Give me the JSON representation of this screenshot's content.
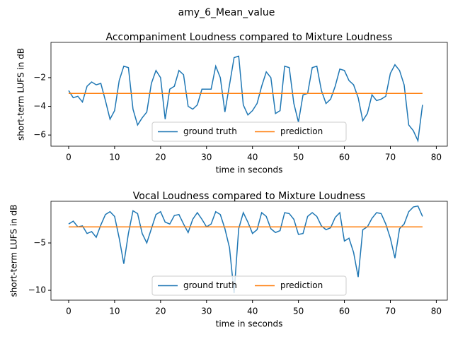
{
  "title": "amy_6_Mean_value",
  "chart_data": [
    {
      "type": "line",
      "title": "Accompaniment Loudness compared to Mixture Loudness",
      "xlabel": "time in seconds",
      "ylabel": "short-term LUFS in dB",
      "xlim": [
        -3.85,
        82.4
      ],
      "xticks": [
        0,
        10,
        20,
        30,
        40,
        50,
        60,
        70,
        80
      ],
      "ylim": [
        -6.78,
        0.46
      ],
      "yticks": [
        {
          "value": -6,
          "label": "−6"
        },
        {
          "value": -4,
          "label": "−4"
        },
        {
          "value": -2,
          "label": "−2"
        }
      ],
      "legend": "lower center",
      "legend_columns": 2,
      "series": [
        {
          "name": "ground truth",
          "color": "#1f77b4",
          "x": [
            0,
            1,
            2,
            3,
            4,
            5,
            6,
            7,
            8,
            9,
            10,
            11,
            12,
            13,
            14,
            15,
            16,
            17,
            18,
            19,
            20,
            21,
            22,
            23,
            24,
            25,
            26,
            27,
            28,
            29,
            30,
            31,
            32,
            33,
            34,
            35,
            36,
            37,
            38,
            39,
            40,
            41,
            42,
            43,
            44,
            45,
            46,
            47,
            48,
            49,
            50,
            51,
            52,
            53,
            54,
            55,
            56,
            57,
            58,
            59,
            60,
            61,
            62,
            63,
            64,
            65,
            66,
            67,
            68,
            69,
            70,
            71,
            72,
            73,
            74,
            75,
            76,
            77
          ],
          "values": [
            -2.9,
            -3.4,
            -3.3,
            -3.7,
            -2.6,
            -2.3,
            -2.5,
            -2.4,
            -3.6,
            -4.9,
            -4.3,
            -2.2,
            -1.2,
            -1.3,
            -4.2,
            -5.3,
            -4.8,
            -4.4,
            -2.4,
            -1.5,
            -2.0,
            -4.9,
            -2.8,
            -2.6,
            -1.5,
            -1.8,
            -4.0,
            -4.2,
            -3.9,
            -2.8,
            -2.8,
            -2.8,
            -1.2,
            -2.0,
            -4.4,
            -2.5,
            -0.6,
            -0.5,
            -3.9,
            -4.6,
            -4.3,
            -3.8,
            -2.6,
            -1.6,
            -2.0,
            -4.5,
            -4.3,
            -1.2,
            -1.3,
            -3.8,
            -5.1,
            -3.2,
            -3.1,
            -1.3,
            -1.2,
            -2.9,
            -3.8,
            -3.5,
            -2.6,
            -1.4,
            -1.5,
            -2.2,
            -2.5,
            -3.4,
            -5.0,
            -4.5,
            -3.2,
            -3.6,
            -3.5,
            -3.3,
            -1.7,
            -1.1,
            -1.5,
            -2.5,
            -5.3,
            -5.7,
            -6.4,
            -3.9
          ]
        },
        {
          "name": "prediction",
          "color": "#ff7f0e",
          "x": [
            0,
            77
          ],
          "values": [
            -3.1,
            -3.1
          ]
        }
      ]
    },
    {
      "type": "line",
      "title": "Vocal Loudness compared to Mixture Loudness",
      "xlabel": "time in seconds",
      "ylabel": "short-term LUFS in dB",
      "xlim": [
        -3.85,
        82.4
      ],
      "xticks": [
        0,
        10,
        20,
        30,
        40,
        50,
        60,
        70,
        80
      ],
      "ylim": [
        -11.04,
        -0.6
      ],
      "yticks": [
        {
          "value": -10,
          "label": "−10"
        },
        {
          "value": -5,
          "label": "−5"
        }
      ],
      "legend": "lower center",
      "legend_columns": 2,
      "series": [
        {
          "name": "ground truth",
          "color": "#1f77b4",
          "x": [
            0,
            1,
            2,
            3,
            4,
            5,
            6,
            7,
            8,
            9,
            10,
            11,
            12,
            13,
            14,
            15,
            16,
            17,
            18,
            19,
            20,
            21,
            22,
            23,
            24,
            25,
            26,
            27,
            28,
            29,
            30,
            31,
            32,
            33,
            34,
            35,
            36,
            37,
            38,
            39,
            40,
            41,
            42,
            43,
            44,
            45,
            46,
            47,
            48,
            49,
            50,
            51,
            52,
            53,
            54,
            55,
            56,
            57,
            58,
            59,
            60,
            61,
            62,
            63,
            64,
            65,
            66,
            67,
            68,
            69,
            70,
            71,
            72,
            73,
            74,
            75,
            76,
            77
          ],
          "values": [
            -3.0,
            -2.7,
            -3.3,
            -3.2,
            -4.0,
            -3.8,
            -4.4,
            -3.1,
            -2.0,
            -1.7,
            -2.2,
            -4.5,
            -7.2,
            -4.0,
            -1.6,
            -1.9,
            -4.0,
            -5.0,
            -3.5,
            -2.0,
            -1.7,
            -2.8,
            -3.0,
            -2.1,
            -2.0,
            -3.0,
            -3.9,
            -2.5,
            -1.8,
            -2.5,
            -3.3,
            -3.0,
            -1.7,
            -2.0,
            -3.5,
            -5.5,
            -10.3,
            -3.5,
            -1.8,
            -2.8,
            -4.0,
            -3.6,
            -1.8,
            -2.2,
            -3.5,
            -3.9,
            -3.7,
            -1.8,
            -1.9,
            -2.5,
            -4.1,
            -4.0,
            -2.2,
            -1.8,
            -2.2,
            -3.2,
            -3.6,
            -3.4,
            -2.3,
            -1.8,
            -4.8,
            -4.5,
            -6.0,
            -8.6,
            -3.6,
            -3.3,
            -2.4,
            -1.8,
            -1.9,
            -3.0,
            -4.5,
            -6.6,
            -3.5,
            -3.0,
            -1.7,
            -1.2,
            -1.1,
            -2.2
          ]
        },
        {
          "name": "prediction",
          "color": "#ff7f0e",
          "x": [
            0,
            77
          ],
          "values": [
            -3.3,
            -3.3
          ]
        }
      ]
    }
  ]
}
